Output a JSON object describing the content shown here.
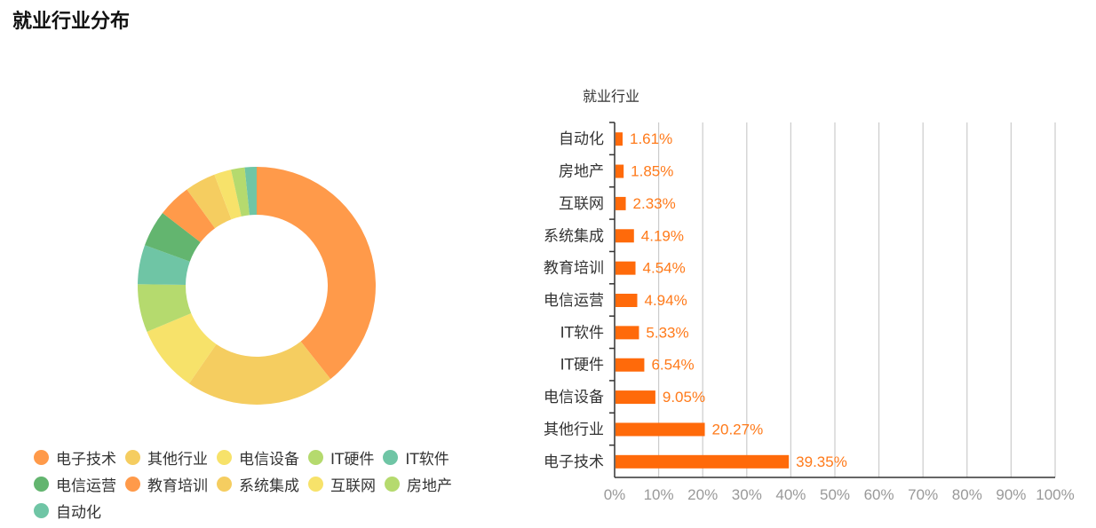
{
  "page": {
    "title": "就业行业分布"
  },
  "colors": {
    "bar": "#ff6a0a",
    "label": "#ff7a1a",
    "axis": "#333333",
    "grid": "#cccccc",
    "tick_text": "#999999"
  },
  "legend": {
    "items": [
      {
        "label": "电子技术",
        "color": "#ff9a4a"
      },
      {
        "label": "其他行业",
        "color": "#f5cd60"
      },
      {
        "label": "电信设备",
        "color": "#f7e26a"
      },
      {
        "label": "IT硬件",
        "color": "#b5da6e"
      },
      {
        "label": "IT软件",
        "color": "#6fc5a5"
      },
      {
        "label": "电信运营",
        "color": "#63b56f"
      },
      {
        "label": "教育培训",
        "color": "#ff9a4a"
      },
      {
        "label": "系统集成",
        "color": "#f5cd60"
      },
      {
        "label": "互联网",
        "color": "#f7e26a"
      },
      {
        "label": "房地产",
        "color": "#b5da6e"
      },
      {
        "label": "自动化",
        "color": "#6fc5a5"
      }
    ]
  },
  "chart_data": [
    {
      "type": "pie",
      "subtype": "donut",
      "title": "",
      "labels": [
        "电子技术",
        "其他行业",
        "电信设备",
        "IT硬件",
        "IT软件",
        "电信运营",
        "教育培训",
        "系统集成",
        "互联网",
        "房地产",
        "自动化"
      ],
      "values": [
        39.35,
        20.27,
        9.05,
        6.54,
        5.33,
        4.94,
        4.54,
        4.19,
        2.33,
        1.85,
        1.61
      ],
      "colors": [
        "#ff9a4a",
        "#f5cd60",
        "#f7e26a",
        "#b5da6e",
        "#6fc5a5",
        "#63b56f",
        "#ff9a4a",
        "#f5cd60",
        "#f7e26a",
        "#b5da6e",
        "#6fc5a5"
      ],
      "legend_position": "bottom"
    },
    {
      "type": "bar",
      "orientation": "horizontal",
      "title": "就业行业",
      "categories": [
        "电子技术",
        "其他行业",
        "电信设备",
        "IT硬件",
        "IT软件",
        "电信运营",
        "教育培训",
        "系统集成",
        "互联网",
        "房地产",
        "自动化"
      ],
      "values": [
        39.35,
        20.27,
        9.05,
        6.54,
        5.33,
        4.94,
        4.54,
        4.19,
        2.33,
        1.85,
        1.61
      ],
      "value_labels": [
        "39.35%",
        "20.27%",
        "9.05%",
        "6.54%",
        "5.33%",
        "4.94%",
        "4.54%",
        "4.19%",
        "2.33%",
        "1.85%",
        "1.61%"
      ],
      "xlabel": "",
      "ylabel": "",
      "xlim": [
        0,
        100
      ],
      "x_ticks": [
        "0%",
        "10%",
        "20%",
        "30%",
        "40%",
        "50%",
        "60%",
        "70%",
        "80%",
        "90%",
        "100%"
      ],
      "grid": "vertical"
    }
  ]
}
